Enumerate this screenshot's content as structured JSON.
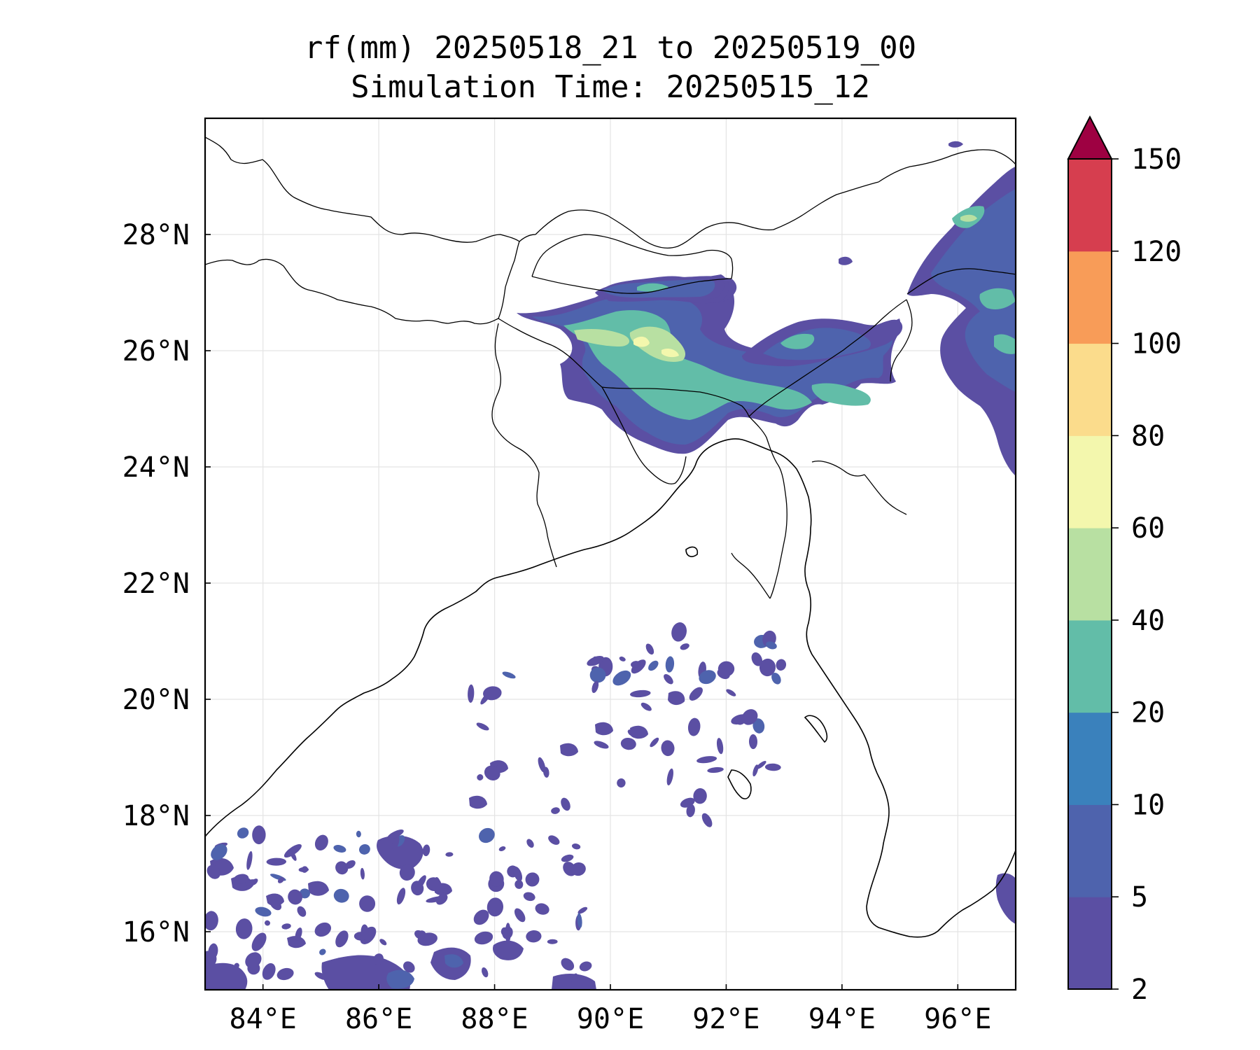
{
  "title": {
    "line1": "rf(mm) 20250518_21 to 20250519_00",
    "line2": "Simulation Time: 20250515_12"
  },
  "map": {
    "lon_range": [
      83.0,
      97.0
    ],
    "lat_range": [
      15.0,
      30.0
    ],
    "x_ticks": [
      "84°E",
      "86°E",
      "88°E",
      "90°E",
      "92°E",
      "94°E",
      "96°E"
    ],
    "y_ticks": [
      "16°N",
      "18°N",
      "20°N",
      "22°N",
      "24°N",
      "26°N",
      "28°N"
    ],
    "gridlines": true
  },
  "colorbar": {
    "levels": [
      "2",
      "5",
      "10",
      "20",
      "40",
      "60",
      "80",
      "100",
      "120",
      "150"
    ],
    "colors": [
      "#5b4fa3",
      "#4e63ad",
      "#3a81bc",
      "#62bda8",
      "#b8e0a2",
      "#f3f7ad",
      "#fbdc8c",
      "#f89c58",
      "#d63e4f"
    ],
    "extend_color": "#9e0142",
    "extend": "max"
  },
  "chart_data": {
    "type": "heatmap",
    "title": "rf(mm) 20250518_21 to 20250519_00",
    "subtitle": "Simulation Time: 20250515_12",
    "xlabel": "",
    "ylabel": "",
    "xlim": [
      83.0,
      97.0
    ],
    "ylim": [
      15.0,
      30.0
    ],
    "colorbar_levels": [
      2,
      5,
      10,
      20,
      40,
      60,
      80,
      100,
      120,
      150
    ],
    "rain_regions": [
      {
        "lon": 90.5,
        "lat": 26.0,
        "max_level": 80
      },
      {
        "lon": 91.5,
        "lat": 25.2,
        "max_level": 40
      },
      {
        "lon": 90.8,
        "lat": 26.9,
        "max_level": 20
      },
      {
        "lon": 93.3,
        "lat": 26.0,
        "max_level": 20
      },
      {
        "lon": 96.2,
        "lat": 28.3,
        "max_level": 40
      },
      {
        "lon": 96.6,
        "lat": 26.8,
        "max_level": 20
      },
      {
        "lon": 83.3,
        "lat": 15.3,
        "max_level": 5
      },
      {
        "lon": 86.0,
        "lat": 17.0,
        "max_level": 5
      },
      {
        "lon": 88.0,
        "lat": 15.3,
        "max_level": 10
      }
    ]
  }
}
